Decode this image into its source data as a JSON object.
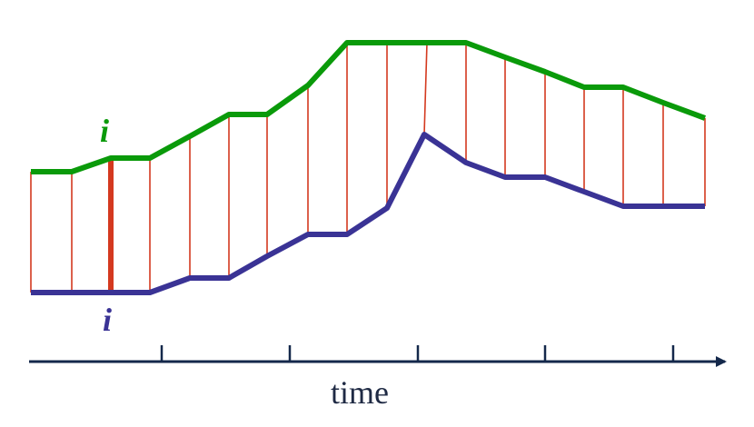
{
  "diagram": {
    "axis_label": "time",
    "upper_label": "i",
    "lower_label": "i",
    "colors": {
      "upper_curve": "#0a9a0a",
      "lower_curve": "#3a3395",
      "links": "#d4391f",
      "axis": "#14284b"
    }
  }
}
